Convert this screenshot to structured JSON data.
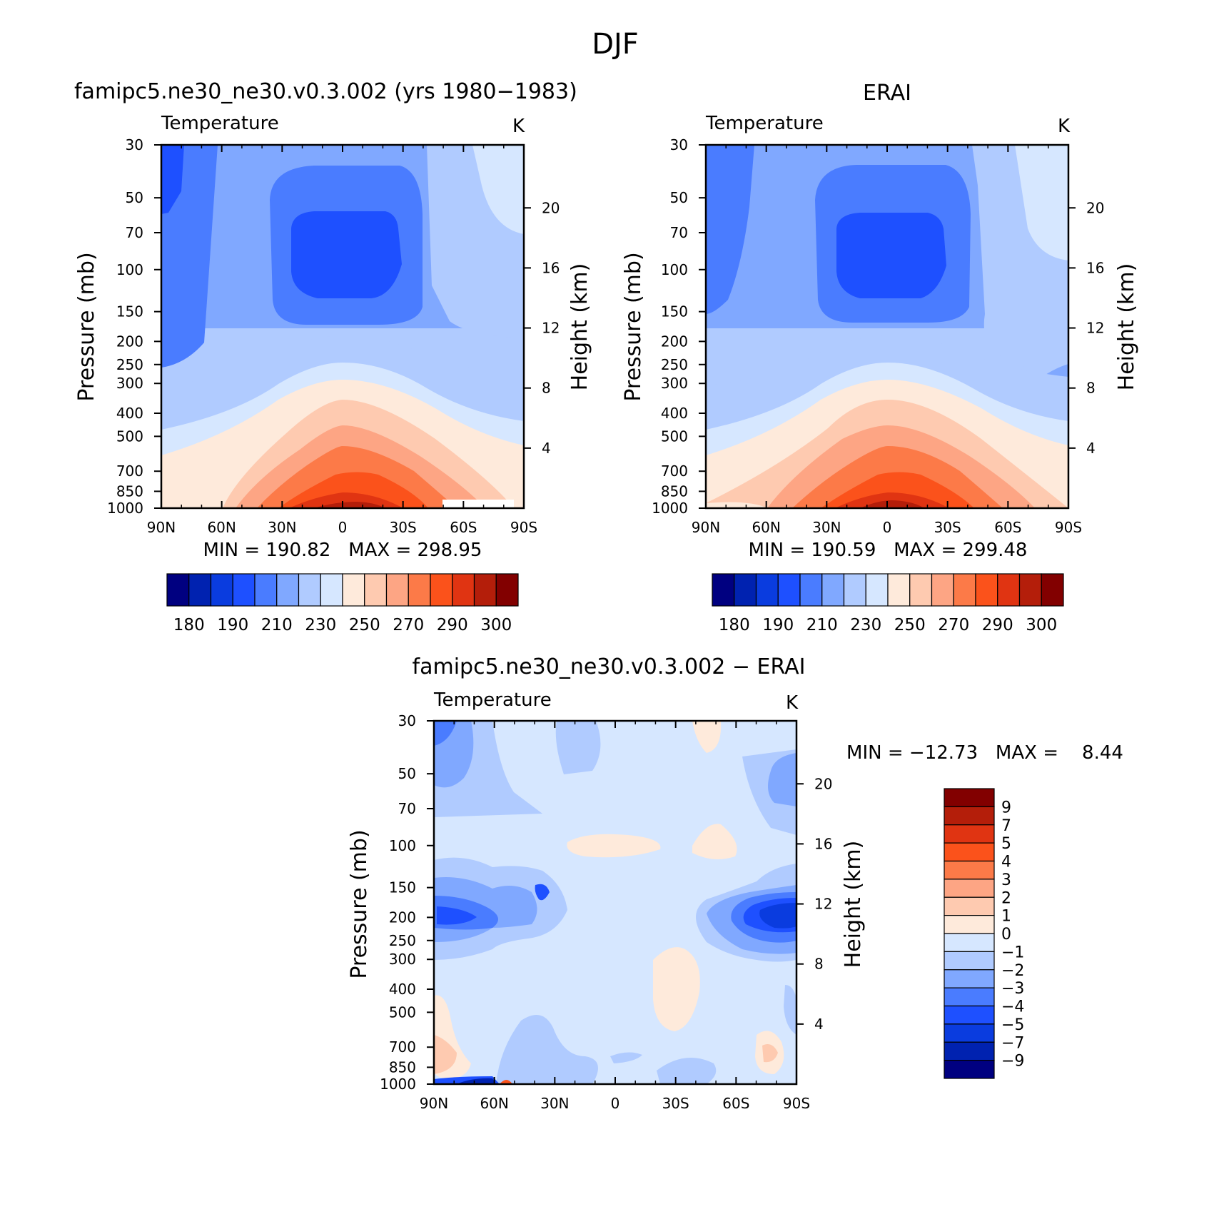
{
  "page_title": "DJF",
  "chart_data": [
    {
      "type": "heatmap",
      "panel": "model",
      "title": "famipc5.ne30_ne30.v0.3.002 (yrs 1980−1983)",
      "left_string": "Temperature",
      "right_string": "K",
      "xlabel": "",
      "ylabel": "Pressure (mb)",
      "ylabel_right": "Height (km)",
      "x_ticks": [
        "90N",
        "60N",
        "30N",
        "0",
        "30S",
        "60S",
        "90S"
      ],
      "y_ticks": [
        "30",
        "50",
        "70",
        "100",
        "150",
        "200",
        "250",
        "300",
        "400",
        "500",
        "700",
        "850",
        "1000"
      ],
      "y_ticks_right": [
        "20",
        "16",
        "12",
        "8",
        "4"
      ],
      "stats": "MIN = 190.82   MAX = 298.95",
      "min": 190.82,
      "max": 298.95,
      "colorbar_orientation": "horizontal",
      "colorbar_labels": [
        "180",
        "190",
        "210",
        "230",
        "250",
        "270",
        "290",
        "300"
      ],
      "colorbar_colors": [
        "#000080",
        "#0022b0",
        "#0a3cdf",
        "#1e50ff",
        "#4a7cff",
        "#80a8ff",
        "#b0cbff",
        "#d6e7ff",
        "#feeadb",
        "#fecab0",
        "#fda584",
        "#fc7a48",
        "#fb521b",
        "#e03412",
        "#b41e0a",
        "#820000"
      ]
    },
    {
      "type": "heatmap",
      "panel": "obs",
      "title": "ERAI",
      "left_string": "Temperature",
      "right_string": "K",
      "xlabel": "",
      "ylabel": "Pressure (mb)",
      "ylabel_right": "Height (km)",
      "x_ticks": [
        "90N",
        "60N",
        "30N",
        "0",
        "30S",
        "60S",
        "90S"
      ],
      "y_ticks": [
        "30",
        "50",
        "70",
        "100",
        "150",
        "200",
        "250",
        "300",
        "400",
        "500",
        "700",
        "850",
        "1000"
      ],
      "y_ticks_right": [
        "20",
        "16",
        "12",
        "8",
        "4"
      ],
      "stats": "MIN = 190.59   MAX = 299.48",
      "min": 190.59,
      "max": 299.48,
      "colorbar_orientation": "horizontal",
      "colorbar_labels": [
        "180",
        "190",
        "210",
        "230",
        "250",
        "270",
        "290",
        "300"
      ],
      "colorbar_colors": [
        "#000080",
        "#0022b0",
        "#0a3cdf",
        "#1e50ff",
        "#4a7cff",
        "#80a8ff",
        "#b0cbff",
        "#d6e7ff",
        "#feeadb",
        "#fecab0",
        "#fda584",
        "#fc7a48",
        "#fb521b",
        "#e03412",
        "#b41e0a",
        "#820000"
      ]
    },
    {
      "type": "heatmap",
      "panel": "diff",
      "title": "famipc5.ne30_ne30.v0.3.002 − ERAI",
      "left_string": "Temperature",
      "right_string": "K",
      "xlabel": "",
      "ylabel": "Pressure (mb)",
      "ylabel_right": "Height (km)",
      "x_ticks": [
        "90N",
        "60N",
        "30N",
        "0",
        "30S",
        "60S",
        "90S"
      ],
      "y_ticks": [
        "30",
        "50",
        "70",
        "100",
        "150",
        "200",
        "250",
        "300",
        "400",
        "500",
        "700",
        "850",
        "1000"
      ],
      "y_ticks_right": [
        "20",
        "16",
        "12",
        "8",
        "4"
      ],
      "stats": "MIN = −12.73   MAX =    8.44",
      "min": -12.73,
      "max": 8.44,
      "colorbar_orientation": "vertical",
      "colorbar_labels": [
        "9",
        "7",
        "5",
        "4",
        "3",
        "2",
        "1",
        "0",
        "−1",
        "−2",
        "−3",
        "−4",
        "−5",
        "−7",
        "−9"
      ],
      "colorbar_colors": [
        "#820000",
        "#b41e0a",
        "#e03412",
        "#fb521b",
        "#fc7a48",
        "#fda584",
        "#fecab0",
        "#feeadb",
        "#d6e7ff",
        "#b0cbff",
        "#80a8ff",
        "#4a7cff",
        "#1e50ff",
        "#0a3cdf",
        "#0022b0",
        "#000080"
      ]
    }
  ]
}
